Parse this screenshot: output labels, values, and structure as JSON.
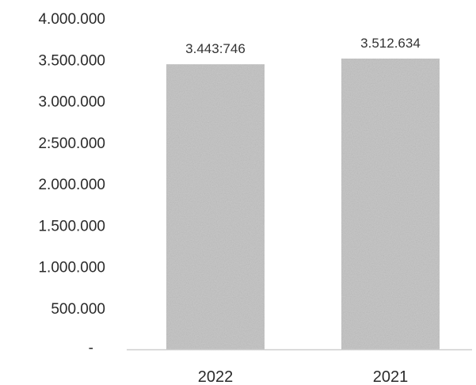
{
  "chart_data": {
    "type": "bar",
    "categories": [
      "2022",
      "2021"
    ],
    "values": [
      3443746,
      3512634
    ],
    "data_labels": [
      "3.443:746",
      "3.512.634"
    ],
    "title": "",
    "xlabel": "",
    "ylabel": "",
    "ylim": [
      0,
      4000000
    ],
    "yticks": [
      {
        "value": 0,
        "label": "-"
      },
      {
        "value": 500000,
        "label": "500.000"
      },
      {
        "value": 1000000,
        "label": "1.000.000"
      },
      {
        "value": 1500000,
        "label": "1.500.000"
      },
      {
        "value": 2000000,
        "label": "2.000.000"
      },
      {
        "value": 2500000,
        "label": "2:500.000"
      },
      {
        "value": 3000000,
        "label": "3.000.000"
      },
      {
        "value": 3500000,
        "label": "3.500.000"
      },
      {
        "value": 4000000,
        "label": "4.000.000"
      }
    ],
    "grid": false,
    "legend": "none",
    "bar_color": "#c8c8c8",
    "axis_color": "#cfcfcf"
  }
}
